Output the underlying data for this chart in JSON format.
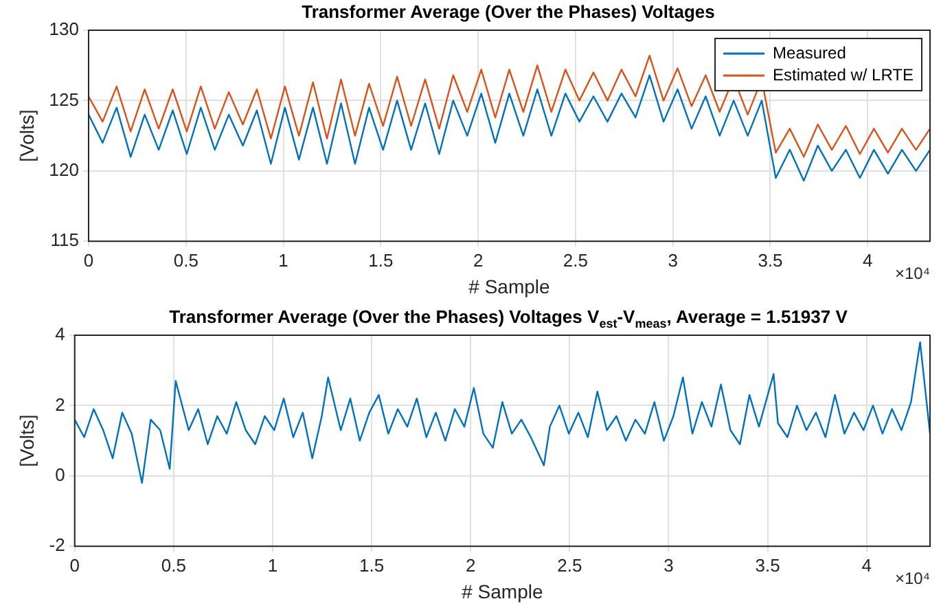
{
  "chart_data": [
    {
      "type": "line",
      "title": "Transformer Average (Over the Phases) Voltages",
      "xlabel": "# Sample",
      "ylabel": "[Volts]",
      "annotations": [
        "×10⁴"
      ],
      "x": [
        0,
        0.072,
        0.144,
        0.216,
        0.288,
        0.36,
        0.432,
        0.504,
        0.576,
        0.648,
        0.72,
        0.792,
        0.864,
        0.936,
        1.008,
        1.08,
        1.152,
        1.224,
        1.296,
        1.368,
        1.44,
        1.512,
        1.584,
        1.656,
        1.728,
        1.8,
        1.872,
        1.944,
        2.016,
        2.088,
        2.16,
        2.232,
        2.304,
        2.376,
        2.448,
        2.52,
        2.592,
        2.664,
        2.736,
        2.808,
        2.88,
        2.952,
        3.024,
        3.096,
        3.168,
        3.24,
        3.312,
        3.384,
        3.456,
        3.528,
        3.6,
        3.672,
        3.744,
        3.816,
        3.888,
        3.96,
        4.032,
        4.104,
        4.176,
        4.248,
        4.32
      ],
      "xlim": [
        0,
        4.32
      ],
      "xticks": [
        0,
        0.5,
        1,
        1.5,
        2,
        2.5,
        3,
        3.5,
        4
      ],
      "ylim": [
        115,
        130
      ],
      "yticks": [
        115,
        120,
        125,
        130
      ],
      "grid": true,
      "legend": "top right",
      "line_style": "solid",
      "marker": "none",
      "series": [
        {
          "name": "Measured",
          "color": "#0072bd",
          "values": [
            124,
            122,
            124.5,
            121,
            124,
            121.5,
            124.3,
            121.2,
            124.5,
            121.5,
            124,
            121.8,
            124.3,
            120.5,
            124.5,
            120.8,
            124.5,
            120.5,
            124.8,
            120.5,
            124.5,
            121.5,
            125,
            121.5,
            124.8,
            121.2,
            125,
            122.5,
            125.5,
            122,
            125.5,
            122.5,
            125.8,
            122.5,
            125.5,
            123.5,
            125.3,
            123.5,
            125.5,
            123.8,
            126.8,
            123.5,
            125.8,
            123,
            125.3,
            122.5,
            125,
            122.5,
            125,
            119.5,
            121.5,
            119.3,
            121.8,
            120,
            121.5,
            119.5,
            121.5,
            119.8,
            121.5,
            120,
            121.5
          ]
        },
        {
          "name": "Estimated w/ LRTE",
          "color": "#d95319",
          "values": [
            125.3,
            123.5,
            126,
            122.8,
            125.8,
            123,
            125.8,
            122.8,
            126,
            123,
            125.6,
            123.3,
            125.8,
            122.3,
            126,
            122.5,
            126.3,
            122.3,
            126.5,
            122.5,
            126.2,
            123.2,
            126.7,
            123.2,
            126.5,
            123,
            126.8,
            124.2,
            127.2,
            123.8,
            127.2,
            124.2,
            127.5,
            124.2,
            127.2,
            125,
            127,
            125,
            127.2,
            125.3,
            128.2,
            125,
            127.3,
            124.6,
            126.8,
            124.2,
            126.6,
            124,
            126.5,
            121.3,
            123,
            121,
            123.3,
            121.5,
            123.2,
            121.2,
            123,
            121.3,
            123,
            121.5,
            123
          ]
        }
      ]
    },
    {
      "type": "line",
      "title": "Transformer Average (Over the Phases) Voltages V$_{est}$-V$_{meas}$, Average = 1.51937 V",
      "xlabel": "# Sample",
      "ylabel": "[Volts]",
      "annotations": [
        "×10⁴"
      ],
      "x": [
        0,
        0.048,
        0.096,
        0.144,
        0.192,
        0.24,
        0.288,
        0.34,
        0.384,
        0.432,
        0.48,
        0.51,
        0.576,
        0.624,
        0.672,
        0.72,
        0.768,
        0.816,
        0.864,
        0.912,
        0.96,
        1.008,
        1.056,
        1.104,
        1.152,
        1.2,
        1.248,
        1.28,
        1.344,
        1.392,
        1.44,
        1.488,
        1.536,
        1.584,
        1.632,
        1.68,
        1.728,
        1.776,
        1.824,
        1.872,
        1.92,
        1.968,
        2.016,
        2.064,
        2.112,
        2.16,
        2.208,
        2.256,
        2.304,
        2.37,
        2.4,
        2.448,
        2.496,
        2.544,
        2.592,
        2.64,
        2.688,
        2.736,
        2.784,
        2.832,
        2.88,
        2.928,
        2.976,
        3.024,
        3.072,
        3.12,
        3.168,
        3.216,
        3.264,
        3.312,
        3.36,
        3.408,
        3.456,
        3.53,
        3.552,
        3.6,
        3.648,
        3.696,
        3.744,
        3.792,
        3.84,
        3.888,
        3.936,
        3.984,
        4.032,
        4.08,
        4.128,
        4.176,
        4.224,
        4.27,
        4.32
      ],
      "xlim": [
        0,
        4.32
      ],
      "xticks": [
        0,
        0.5,
        1,
        1.5,
        2,
        2.5,
        3,
        3.5,
        4
      ],
      "ylim": [
        -2,
        4
      ],
      "yticks": [
        -2,
        0,
        2,
        4
      ],
      "grid": true,
      "line_style": "solid",
      "marker": "none",
      "series": [
        {
          "color": "#0072bd",
          "values": [
            1.6,
            1.1,
            1.9,
            1.3,
            0.5,
            1.8,
            1.2,
            -0.2,
            1.6,
            1.3,
            0.2,
            2.7,
            1.3,
            1.9,
            0.9,
            1.7,
            1.2,
            2.1,
            1.3,
            0.9,
            1.7,
            1.3,
            2.2,
            1.1,
            1.8,
            0.5,
            1.7,
            2.8,
            1.3,
            2.2,
            1.0,
            1.8,
            2.3,
            1.2,
            1.9,
            1.4,
            2.2,
            1.1,
            1.8,
            1.0,
            1.9,
            1.4,
            2.5,
            1.2,
            0.8,
            2.1,
            1.2,
            1.6,
            1.1,
            0.3,
            1.4,
            2.0,
            1.2,
            1.8,
            1.1,
            2.4,
            1.3,
            1.7,
            1.0,
            1.6,
            1.2,
            2.1,
            1.0,
            1.7,
            2.8,
            1.2,
            2.1,
            1.4,
            2.6,
            1.3,
            0.9,
            2.3,
            1.4,
            2.9,
            1.5,
            1.1,
            2.0,
            1.3,
            1.8,
            1.1,
            2.3,
            1.2,
            1.8,
            1.3,
            2.0,
            1.2,
            1.9,
            1.3,
            2.1,
            3.8,
            1.2
          ]
        }
      ]
    }
  ]
}
